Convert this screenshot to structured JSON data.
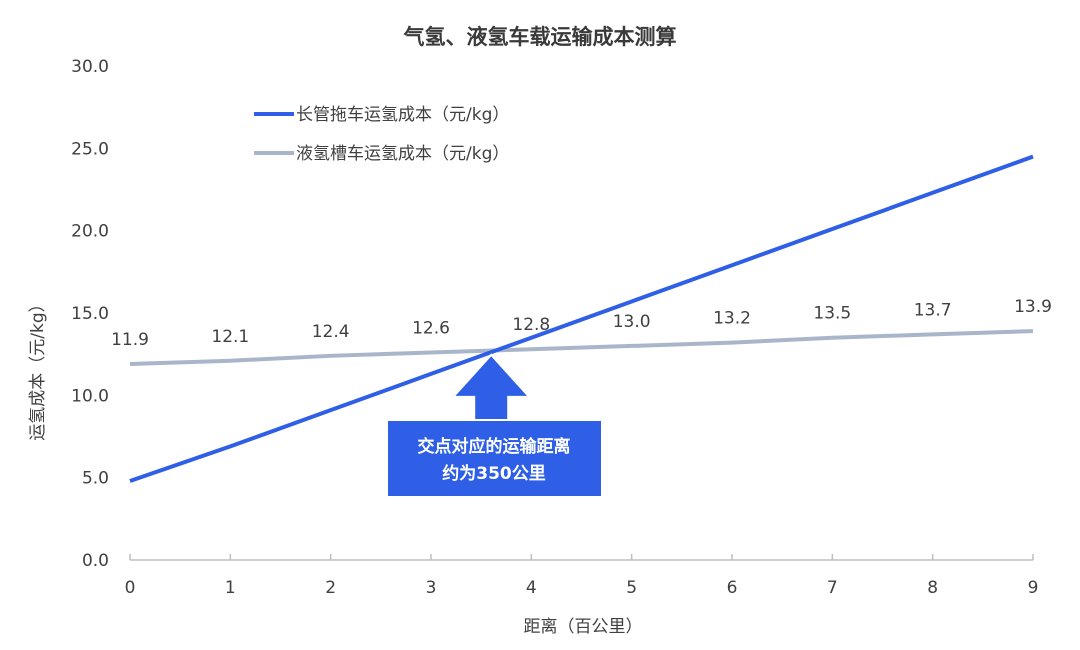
{
  "chart_data": {
    "type": "line",
    "title": "气氢、液氢车载运输成本测算",
    "xlabel": "距离（百公里）",
    "ylabel": "运氢成本（元/kg）",
    "x": [
      0,
      1,
      2,
      3,
      4,
      5,
      6,
      7,
      8,
      9
    ],
    "xlim": [
      0,
      9
    ],
    "ylim": [
      0,
      30
    ],
    "yticks": [
      "0.0",
      "5.0",
      "10.0",
      "15.0",
      "20.0",
      "25.0",
      "30.0"
    ],
    "xticks": [
      "0",
      "1",
      "2",
      "3",
      "4",
      "5",
      "6",
      "7",
      "8",
      "9"
    ],
    "grid": false,
    "legend_position": "top-left",
    "series": [
      {
        "name": "长管拖车运氢成本（元/kg）",
        "color": "#2e5fe6",
        "values": [
          4.8,
          6.9,
          9.1,
          11.3,
          13.5,
          15.7,
          17.9,
          20.1,
          22.3,
          24.5
        ],
        "data_labels": []
      },
      {
        "name": "液氢槽车运氢成本（元/kg）",
        "color": "#a9b5c8",
        "values": [
          11.9,
          12.1,
          12.4,
          12.6,
          12.8,
          13.0,
          13.2,
          13.5,
          13.7,
          13.9
        ],
        "data_labels": [
          "11.9",
          "12.1",
          "12.4",
          "12.6",
          "12.8",
          "13.0",
          "13.2",
          "13.5",
          "13.7",
          "13.9"
        ]
      }
    ],
    "annotation": {
      "lines": [
        "交点对应的运输距离",
        "约为350公里"
      ],
      "x": 3.6,
      "y": 12.7,
      "color": "#2e5fe6"
    }
  }
}
